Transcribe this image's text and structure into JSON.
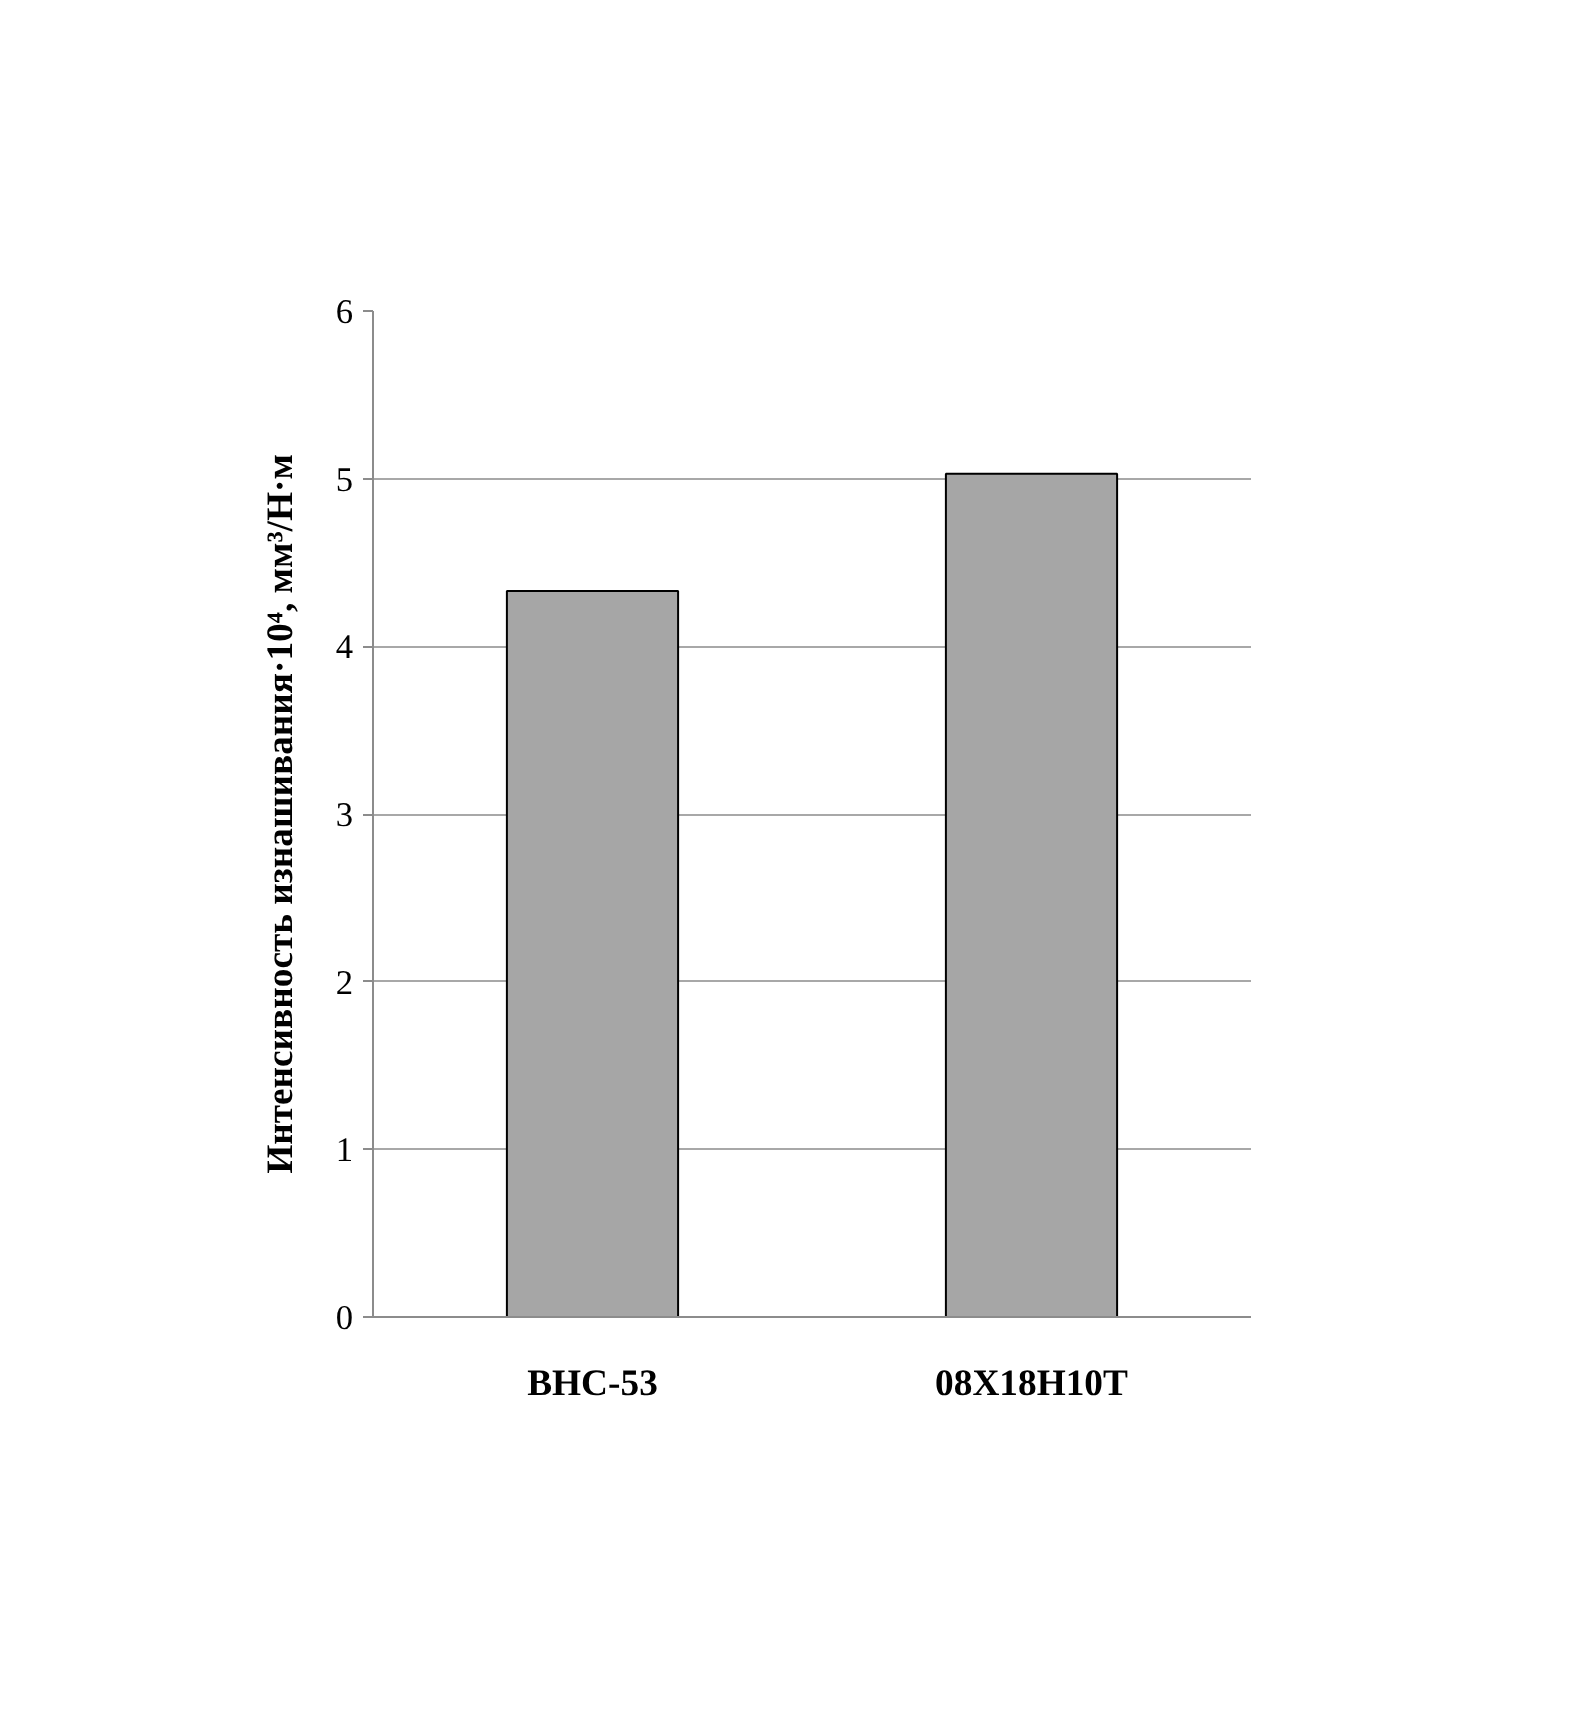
{
  "chart_data": {
    "type": "bar",
    "ylabel": "Интенсивность изнашивания·10⁴, мм³/Н·м",
    "categories": [
      "ВНС-53",
      "08Х18Н10Т"
    ],
    "values": [
      4.33,
      5.03
    ],
    "color": "#a6a6a6",
    "ylim": [
      0,
      6
    ],
    "yticks": [
      0,
      1,
      2,
      3,
      4,
      5,
      6
    ],
    "grid": "y"
  }
}
